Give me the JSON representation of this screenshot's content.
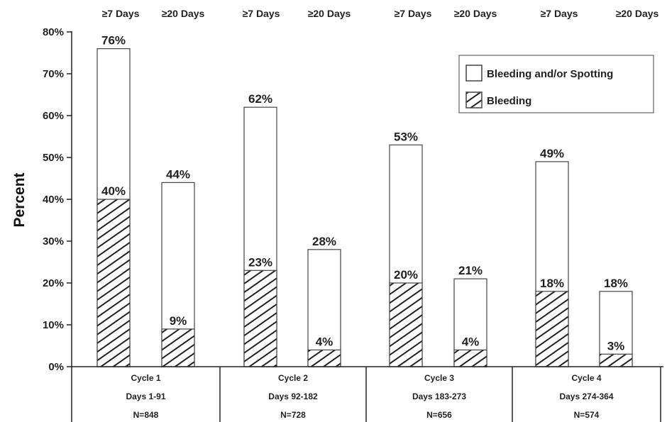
{
  "chart_data": {
    "type": "bar",
    "ylabel": "Percent",
    "ylim": [
      0,
      80
    ],
    "y_ticks": [
      "0%",
      "10%",
      "20%",
      "30%",
      "40%",
      "50%",
      "60%",
      "70%",
      "80%"
    ],
    "grid": false,
    "legend_position": "top-right",
    "headers": [
      "≥7 Days",
      "≥20 Days",
      "≥7 Days",
      "≥20 Days",
      "≥7 Days",
      "≥20 Days",
      "≥7 Days",
      "≥20 Days"
    ],
    "groups": [
      {
        "cycle": "Cycle 1",
        "days": "Days 1-91",
        "n": "N=848"
      },
      {
        "cycle": "Cycle 2",
        "days": "Days 92-182",
        "n": "N=728"
      },
      {
        "cycle": "Cycle 3",
        "days": "Days 183-273",
        "n": "N=656"
      },
      {
        "cycle": "Cycle 4",
        "days": "Days 274-364",
        "n": "N=574"
      }
    ],
    "series": [
      {
        "name": "Bleeding and/or Spotting",
        "pattern": "white",
        "values": [
          76,
          44,
          62,
          28,
          53,
          21,
          49,
          18
        ],
        "labels": [
          "76%",
          "44%",
          "62%",
          "28%",
          "53%",
          "21%",
          "49%",
          "18%"
        ]
      },
      {
        "name": "Bleeding",
        "pattern": "hatched",
        "values": [
          40,
          9,
          23,
          4,
          20,
          4,
          18,
          3
        ],
        "labels": [
          "40%",
          "9%",
          "23%",
          "4%",
          "20%",
          "4%",
          "18%",
          "3%"
        ]
      }
    ]
  }
}
